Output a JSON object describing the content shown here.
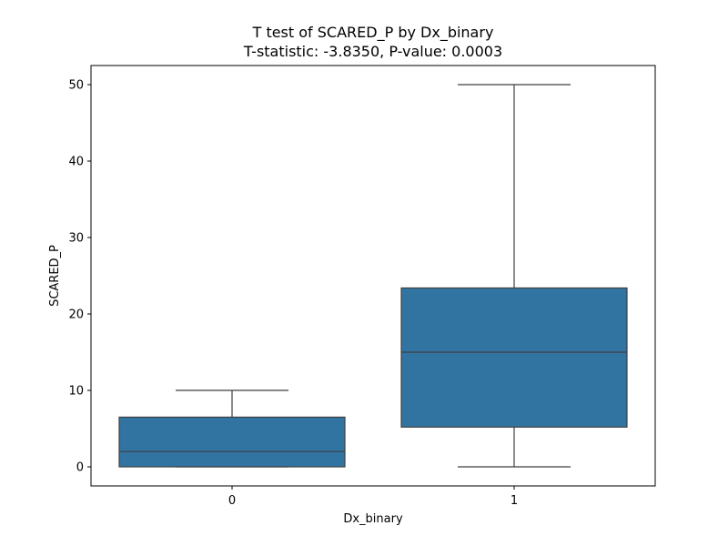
{
  "chart_data": {
    "type": "box",
    "title": "T test of SCARED_P by Dx_binary",
    "subtitle": "T-statistic: -3.8350, P-value: 0.0003",
    "xlabel": "Dx_binary",
    "ylabel": "SCARED_P",
    "categories": [
      "0",
      "1"
    ],
    "ylim": [
      -2.5,
      52.5
    ],
    "yticks": [
      0,
      10,
      20,
      30,
      40,
      50
    ],
    "boxes": [
      {
        "category": "0",
        "whisker_low": 0,
        "q1": 0,
        "median": 2,
        "q3": 6.5,
        "whisker_high": 10
      },
      {
        "category": "1",
        "whisker_low": 0,
        "q1": 5.2,
        "median": 15,
        "q3": 23.4,
        "whisker_high": 50
      }
    ],
    "box_color": "#3274a1",
    "line_color": "#3f3f3f",
    "grid": false
  }
}
